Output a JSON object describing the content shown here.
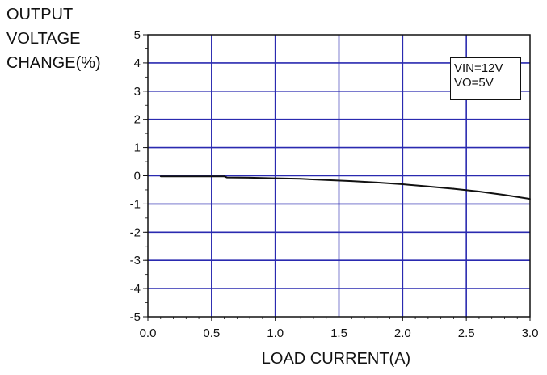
{
  "chart_data": {
    "type": "line",
    "ylabel_lines": [
      "OUTPUT",
      "VOLTAGE",
      "CHANGE(%)"
    ],
    "xlabel": "LOAD CURRENT(A)",
    "xlim": [
      0.0,
      3.0
    ],
    "ylim": [
      -5,
      5
    ],
    "x_ticks": [
      "0.0",
      "0.5",
      "1.0",
      "1.5",
      "2.0",
      "2.5",
      "3.0"
    ],
    "y_ticks": [
      "5",
      "4",
      "3",
      "2",
      "1",
      "0",
      "-1",
      "-2",
      "-3",
      "-4",
      "-5"
    ],
    "grid": true,
    "annotation": [
      "VIN=12V",
      "VO=5V"
    ],
    "colors": {
      "grid": "#2a2ab0",
      "line": "#111111",
      "axis": "#111111"
    },
    "series": [
      {
        "x": [
          0.1,
          0.6,
          0.62,
          0.8,
          1.0,
          1.2,
          1.4,
          1.6,
          1.8,
          2.0,
          2.2,
          2.4,
          2.6,
          2.8,
          3.0
        ],
        "y": [
          -0.02,
          -0.02,
          -0.06,
          -0.07,
          -0.09,
          -0.11,
          -0.15,
          -0.19,
          -0.24,
          -0.3,
          -0.38,
          -0.46,
          -0.56,
          -0.68,
          -0.82
        ]
      }
    ]
  }
}
